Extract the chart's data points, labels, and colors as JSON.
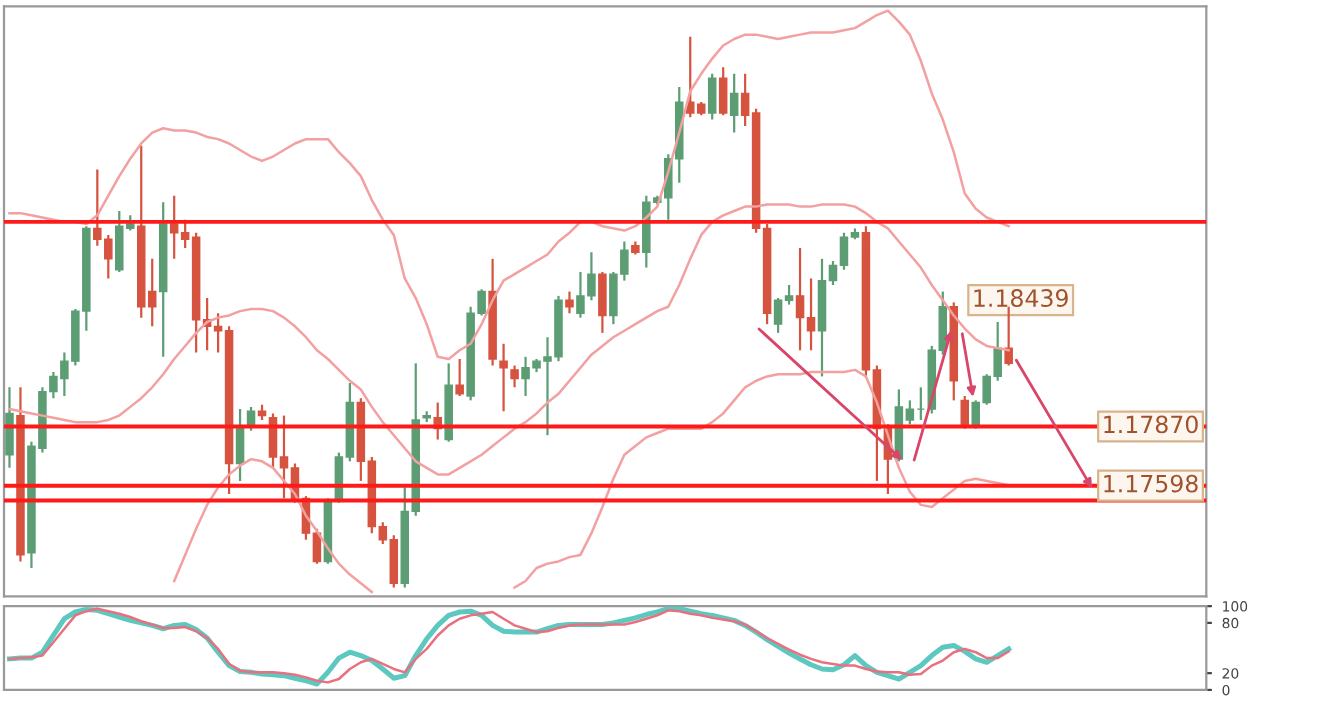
{
  "chart_data": [
    {
      "type": "candlestick",
      "categories": [
        null,
        null,
        null,
        null,
        null,
        null,
        null,
        null,
        null,
        null,
        null,
        null,
        null,
        null,
        null,
        null,
        null,
        null,
        null,
        null,
        null,
        null,
        null,
        null,
        null,
        null,
        null,
        null,
        null,
        null,
        null,
        null,
        null,
        null,
        null,
        null,
        null,
        null,
        null,
        null,
        null,
        null,
        null,
        null,
        null,
        null,
        null,
        null,
        null,
        null,
        null,
        null,
        null,
        null,
        null,
        null,
        null,
        null,
        null,
        null,
        null,
        null,
        null,
        null,
        null,
        null,
        null,
        null,
        null,
        null,
        null,
        null,
        null,
        null,
        null,
        null,
        null,
        null,
        null,
        null,
        null,
        null,
        null,
        null,
        null,
        null,
        null,
        null,
        null,
        null,
        null,
        null
      ],
      "ohlc": [
        [
          1.1774,
          1.1805,
          1.1768,
          1.1793
        ],
        [
          1.1792,
          1.1805,
          1.1725,
          1.1728
        ],
        [
          1.1729,
          1.178,
          1.1722,
          1.1778
        ],
        [
          1.1777,
          1.1805,
          1.1775,
          1.1803
        ],
        [
          1.1803,
          1.1812,
          1.18,
          1.181
        ],
        [
          1.1809,
          1.1821,
          1.1801,
          1.1817
        ],
        [
          1.1817,
          1.1841,
          1.1815,
          1.184
        ],
        [
          1.184,
          1.1879,
          1.1831,
          1.1878
        ],
        [
          1.1878,
          1.1905,
          1.187,
          1.1873
        ],
        [
          1.1873,
          1.1875,
          1.1855,
          1.1864
        ],
        [
          1.1859,
          1.1886,
          1.1858,
          1.1879
        ],
        [
          1.1878,
          1.1884,
          1.1877,
          1.188
        ],
        [
          1.1879,
          1.1916,
          1.1837,
          1.1842
        ],
        [
          1.1849,
          1.1864,
          1.1833,
          1.1842
        ],
        [
          1.1849,
          1.189,
          1.1819,
          1.188
        ],
        [
          1.188,
          1.1893,
          1.1864,
          1.1876
        ],
        [
          1.1876,
          1.1882,
          1.1869,
          1.1873
        ],
        [
          1.1874,
          1.1876,
          1.1821,
          1.1836
        ],
        [
          1.1836,
          1.1846,
          1.1822,
          1.1833
        ],
        [
          1.1833,
          1.1839,
          1.1821,
          1.1831
        ],
        [
          1.1831,
          1.1833,
          1.1756,
          1.177
        ],
        [
          1.177,
          1.1795,
          1.1762,
          1.1786
        ],
        [
          1.1787,
          1.1796,
          1.1785,
          1.1794
        ],
        [
          1.1794,
          1.1797,
          1.179,
          1.1792
        ],
        [
          1.1791,
          1.1793,
          1.1768,
          1.1773
        ],
        [
          1.1773,
          1.1792,
          1.1754,
          1.1768
        ],
        [
          1.1768,
          1.177,
          1.1752,
          1.1753
        ],
        [
          1.1754,
          1.1755,
          1.1735,
          1.1738
        ],
        [
          1.1738,
          1.174,
          1.1724,
          1.1725
        ],
        [
          1.1725,
          1.1754,
          1.1724,
          1.1753
        ],
        [
          1.1753,
          1.1775,
          1.1752,
          1.1773
        ],
        [
          1.1773,
          1.1807,
          1.1771,
          1.1798
        ],
        [
          1.1798,
          1.18,
          1.1762,
          1.1771
        ],
        [
          1.1771,
          1.1773,
          1.1738,
          1.1741
        ],
        [
          1.1741,
          1.1743,
          1.1733,
          1.1735
        ],
        [
          1.1735,
          1.1737,
          1.1713,
          1.1715
        ],
        [
          1.1715,
          1.1759,
          1.1713,
          1.1748
        ],
        [
          1.1748,
          1.1816,
          1.1746,
          1.179
        ],
        [
          1.1791,
          1.1794,
          1.1789,
          1.1792
        ],
        [
          1.1791,
          1.1798,
          1.1781,
          1.1786
        ],
        [
          1.1781,
          1.1816,
          1.178,
          1.1806
        ],
        [
          1.1806,
          1.1818,
          1.1801,
          1.1802
        ],
        [
          1.1801,
          1.1842,
          1.1799,
          1.1839
        ],
        [
          1.1839,
          1.185,
          1.1838,
          1.1849
        ],
        [
          1.1849,
          1.1864,
          1.1815,
          1.1818
        ],
        [
          1.1817,
          1.1825,
          1.1794,
          1.1814
        ],
        [
          1.1813,
          1.1815,
          1.1805,
          1.1809
        ],
        [
          1.1809,
          1.1819,
          1.1801,
          1.1814
        ],
        [
          1.1814,
          1.1818,
          1.1812,
          1.1817
        ],
        [
          1.1817,
          1.1828,
          1.1783,
          1.1819
        ],
        [
          1.1819,
          1.1847,
          1.1817,
          1.1845
        ],
        [
          1.1845,
          1.1849,
          1.1839,
          1.1842
        ],
        [
          1.1839,
          1.1858,
          1.1837,
          1.1847
        ],
        [
          1.1847,
          1.1867,
          1.1845,
          1.1857
        ],
        [
          1.1857,
          1.1858,
          1.183,
          1.1838
        ],
        [
          1.1838,
          1.1858,
          1.1834,
          1.1857
        ],
        [
          1.1857,
          1.1872,
          1.1854,
          1.1868
        ],
        [
          1.187,
          1.1872,
          1.1866,
          1.1867
        ],
        [
          1.1867,
          1.1893,
          1.186,
          1.189
        ],
        [
          1.189,
          1.1893,
          1.1889,
          1.1892
        ],
        [
          1.1892,
          1.1912,
          1.1882,
          1.191
        ],
        [
          1.191,
          1.1943,
          1.1899,
          1.1936
        ],
        [
          1.1936,
          1.1966,
          1.1929,
          1.1931
        ],
        [
          1.1935,
          1.1936,
          1.193,
          1.1931
        ],
        [
          1.1931,
          1.1949,
          1.1928,
          1.1947
        ],
        [
          1.1947,
          1.1952,
          1.193,
          1.1931
        ],
        [
          1.193,
          1.1949,
          1.1922,
          1.194
        ],
        [
          1.194,
          1.1949,
          1.1925,
          1.193
        ],
        [
          1.1931,
          1.1933,
          1.1876,
          1.1878
        ],
        [
          1.1878,
          1.188,
          1.1834,
          1.1839
        ],
        [
          1.1834,
          1.1846,
          1.183,
          1.1845
        ],
        [
          1.1845,
          1.1852,
          1.1843,
          1.1847
        ],
        [
          1.1847,
          1.1869,
          1.1822,
          1.1837
        ],
        [
          1.1837,
          1.1855,
          1.1822,
          1.1831
        ],
        [
          1.1831,
          1.1864,
          1.181,
          1.1854
        ],
        [
          1.1854,
          1.1863,
          1.1852,
          1.1861
        ],
        [
          1.1861,
          1.1876,
          1.1859,
          1.1874
        ],
        [
          1.1874,
          1.1878,
          1.1873,
          1.1876
        ],
        [
          1.1876,
          1.1879,
          1.181,
          1.1813
        ],
        [
          1.1813,
          1.1815,
          1.1762,
          1.1786
        ],
        [
          1.1786,
          1.1788,
          1.1756,
          1.1772
        ],
        [
          1.1772,
          1.1804,
          1.1771,
          1.1796
        ],
        [
          1.179,
          1.1799,
          1.1788,
          1.1795
        ],
        [
          1.1795,
          1.1805,
          1.179,
          1.1795
        ],
        [
          1.1795,
          1.1824,
          1.1793,
          1.1822
        ],
        [
          1.1822,
          1.1849,
          1.182,
          1.1842
        ],
        [
          1.1842,
          1.1844,
          1.1799,
          1.1808
        ],
        [
          1.1799,
          1.1801,
          1.1786,
          1.1787
        ],
        [
          1.1787,
          1.1799,
          1.1786,
          1.1798
        ],
        [
          1.1798,
          1.1811,
          1.1797,
          1.181
        ],
        [
          1.181,
          1.1835,
          1.1808,
          1.1823
        ],
        [
          1.1823,
          1.1842,
          1.1815,
          1.1816
        ]
      ],
      "colors": [
        "#5c9d74",
        "#d6533f",
        "#5c9d74",
        "#5c9d74",
        "#5c9d74",
        "#5c9d74",
        "#5c9d74",
        "#5c9d74",
        "#d6533f",
        "#d6533f",
        "#5c9d74",
        "#5c9d74",
        "#d6533f",
        "#d6533f",
        "#5c9d74",
        "#d6533f",
        "#d6533f",
        "#d6533f",
        "#d6533f",
        "#d6533f",
        "#d6533f",
        "#5c9d74",
        "#5c9d74",
        "#d6533f",
        "#d6533f",
        "#d6533f",
        "#d6533f",
        "#d6533f",
        "#d6533f",
        "#5c9d74",
        "#5c9d74",
        "#5c9d74",
        "#d6533f",
        "#d6533f",
        "#d6533f",
        "#d6533f",
        "#5c9d74",
        "#5c9d74",
        "#5c9d74",
        "#d6533f",
        "#5c9d74",
        "#d6533f",
        "#5c9d74",
        "#5c9d74",
        "#d6533f",
        "#d6533f",
        "#d6533f",
        "#5c9d74",
        "#5c9d74",
        "#5c9d74",
        "#5c9d74",
        "#d6533f",
        "#5c9d74",
        "#5c9d74",
        "#d6533f",
        "#5c9d74",
        "#5c9d74",
        "#d6533f",
        "#5c9d74",
        "#5c9d74",
        "#5c9d74",
        "#5c9d74",
        "#d6533f",
        "#d6533f",
        "#5c9d74",
        "#d6533f",
        "#5c9d74",
        "#d6533f",
        "#d6533f",
        "#d6533f",
        "#5c9d74",
        "#5c9d74",
        "#d6533f",
        "#d6533f",
        "#5c9d74",
        "#5c9d74",
        "#5c9d74",
        "#5c9d74",
        "#d6533f",
        "#d6533f",
        "#d6533f",
        "#5c9d74",
        "#5c9d74",
        "#5c9d74",
        "#5c9d74",
        "#5c9d74",
        "#d6533f",
        "#d6533f",
        "#5c9d74",
        "#5c9d74",
        "#5c9d74",
        "#d6533f"
      ],
      "series": [
        {
          "type": "line",
          "color": "#f2a0a0",
          "values": [
            1.1885,
            1.1885,
            1.1884,
            1.1883,
            1.1882,
            1.1881,
            1.1881,
            1.188,
            1.1884,
            1.1893,
            1.1902,
            1.191,
            1.1917,
            1.1922,
            1.1924,
            1.1923,
            1.1923,
            1.1922,
            1.192,
            1.1919,
            1.1917,
            1.1914,
            1.1911,
            1.1909,
            1.1911,
            1.1914,
            1.1917,
            1.1919,
            1.1919,
            1.1919,
            1.1913,
            1.1908,
            1.1902,
            1.1891,
            1.1882,
            1.1875,
            1.1855,
            1.1846,
            1.1834,
            1.1819,
            1.1818,
            1.1822,
            1.1825,
            1.1834,
            1.1845,
            1.1854,
            1.1857,
            1.186,
            1.1863,
            1.1866,
            1.1872,
            1.1876,
            1.1881,
            1.1881,
            1.1879,
            1.1878,
            1.1877,
            1.1879,
            1.1883,
            1.1888,
            1.1904,
            1.1922,
            1.1941,
            1.1949,
            1.1956,
            1.1962,
            1.1965,
            1.1967,
            1.1967,
            1.1966,
            1.1965,
            1.1966,
            1.1967,
            1.1968,
            1.1968,
            1.1968,
            1.1969,
            1.197,
            1.1973,
            1.1976,
            1.1978,
            1.1973,
            1.1967,
            1.1955,
            1.194,
            1.1928,
            1.1913,
            1.1894,
            1.1887,
            1.1883,
            1.1881,
            1.1879
          ]
        },
        {
          "type": "line",
          "color": "#f2a0a0",
          "values": [
            1.1795,
            1.1794,
            1.1793,
            1.1792,
            1.1791,
            1.179,
            1.1789,
            1.1789,
            1.1789,
            1.179,
            1.1792,
            1.1796,
            1.18,
            1.1805,
            1.1811,
            1.1818,
            1.1824,
            1.183,
            1.1835,
            1.1837,
            1.1838,
            1.184,
            1.1841,
            1.1841,
            1.184,
            1.1837,
            1.1833,
            1.1828,
            1.1822,
            1.1818,
            1.1813,
            1.1808,
            1.1804,
            1.1796,
            1.1789,
            1.1783,
            1.1777,
            1.1771,
            1.1768,
            1.1765,
            1.1765,
            1.1768,
            1.1771,
            1.1774,
            1.1778,
            1.1782,
            1.1786,
            1.1789,
            1.1793,
            1.1798,
            1.1802,
            1.1808,
            1.1814,
            1.182,
            1.1824,
            1.1828,
            1.1831,
            1.1834,
            1.1837,
            1.184,
            1.1842,
            1.1852,
            1.1864,
            1.1875,
            1.1881,
            1.1884,
            1.1886,
            1.1888,
            1.1888,
            1.1889,
            1.1889,
            1.1889,
            1.1888,
            1.1888,
            1.1889,
            1.1889,
            1.1889,
            1.1888,
            1.1885,
            1.1881,
            1.1878,
            1.1872,
            1.1866,
            1.186,
            1.1852,
            1.1845,
            1.1838,
            1.1832,
            1.1827,
            1.1824,
            1.1823,
            1.1822
          ]
        },
        {
          "type": "line",
          "color": "#f2a0a0",
          "values": [
            null,
            null,
            null,
            null,
            null,
            null,
            null,
            null,
            null,
            null,
            null,
            null,
            null,
            null,
            null,
            1.1716,
            1.1728,
            1.174,
            1.1751,
            1.1759,
            1.1765,
            1.1769,
            1.1772,
            1.1771,
            1.1768,
            1.1762,
            1.1756,
            1.1746,
            1.1739,
            1.1731,
            1.1724,
            1.1719,
            1.1715,
            1.1711,
            null,
            null,
            null,
            null,
            null,
            null,
            null,
            null,
            null,
            null,
            null,
            null,
            1.1713,
            1.1716,
            1.1722,
            1.1724,
            1.1725,
            1.1727,
            1.1728,
            1.1738,
            1.175,
            1.1763,
            1.1774,
            1.1778,
            1.1782,
            1.1784,
            1.1786,
            1.1786,
            1.1786,
            1.1786,
            1.1789,
            1.1793,
            1.1799,
            1.1805,
            1.1808,
            1.181,
            1.1811,
            1.1811,
            1.1811,
            1.1812,
            1.1812,
            1.1812,
            1.1812,
            1.1813,
            1.181,
            1.1798,
            1.1783,
            1.1768,
            1.1757,
            1.1751,
            1.175,
            1.1754,
            1.1758,
            1.1762,
            1.1763,
            1.1762,
            1.1761,
            1.176
          ]
        }
      ],
      "ylim": [
        1.1709,
        1.198
      ],
      "tick_labels": false,
      "ref_lines": [
        {
          "axis": "y",
          "value": 1.1881,
          "color": "#ff1a1a"
        },
        {
          "axis": "y",
          "value": 1.1787,
          "label": "1.17870",
          "color": "#ff1a1a"
        },
        {
          "axis": "y",
          "value": 1.17598,
          "label": "1.17598",
          "color": "#ff1a1a"
        },
        {
          "axis": "y",
          "value": 1.1753,
          "color": "#ff1a1a"
        }
      ],
      "annotations": [
        "1.18439"
      ]
    },
    {
      "type": "line",
      "categories": [
        null,
        null,
        null,
        null,
        null,
        null,
        null,
        null,
        null,
        null,
        null,
        null,
        null,
        null,
        null,
        null,
        null,
        null,
        null,
        null,
        null,
        null,
        null,
        null,
        null,
        null,
        null,
        null,
        null,
        null,
        null,
        null,
        null,
        null,
        null,
        null,
        null,
        null,
        null,
        null,
        null,
        null,
        null,
        null,
        null,
        null,
        null,
        null,
        null,
        null,
        null,
        null,
        null,
        null,
        null,
        null,
        null,
        null,
        null,
        null,
        null,
        null,
        null,
        null,
        null,
        null,
        null,
        null,
        null,
        null,
        null,
        null,
        null,
        null,
        null,
        null,
        null,
        null,
        null,
        null,
        null,
        null,
        null,
        null,
        null,
        null,
        null,
        null,
        null,
        null,
        null,
        null
      ],
      "series": [
        {
          "color": "#5cc8bf",
          "values": [
            37,
            38,
            38,
            45,
            65,
            85,
            93,
            96,
            95,
            91,
            87,
            83,
            80,
            77,
            73,
            77,
            78,
            72,
            62,
            45,
            29,
            22,
            21,
            19,
            18,
            17,
            14,
            11,
            7,
            21,
            38,
            45,
            41,
            35,
            25,
            14,
            17,
            41,
            61,
            77,
            89,
            93,
            94,
            89,
            77,
            70,
            69,
            69,
            69,
            73,
            77,
            78,
            78,
            78,
            78,
            80,
            83,
            86,
            90,
            93,
            97,
            97,
            94,
            91,
            89,
            86,
            83,
            77,
            69,
            60,
            52,
            44,
            37,
            30,
            25,
            24,
            30,
            41,
            29,
            21,
            17,
            13,
            21,
            29,
            41,
            51,
            53,
            46,
            37,
            33,
            41,
            49
          ]
        },
        {
          "color": "#e8707f",
          "values": [
            37,
            38,
            39,
            41,
            57,
            73,
            89,
            94,
            97,
            94,
            91,
            87,
            82,
            78,
            74,
            74,
            75,
            70,
            62,
            49,
            31,
            23,
            21,
            21,
            21,
            20,
            18,
            15,
            11,
            9,
            13,
            25,
            33,
            37,
            31,
            25,
            21,
            37,
            49,
            65,
            77,
            85,
            89,
            91,
            93,
            85,
            77,
            73,
            69,
            70,
            74,
            77,
            78,
            78,
            78,
            78,
            78,
            81,
            85,
            89,
            95,
            94,
            91,
            89,
            86,
            84,
            82,
            78,
            70,
            62,
            55,
            48,
            42,
            37,
            33,
            31,
            29,
            29,
            25,
            22,
            21,
            21,
            18,
            19,
            29,
            35,
            45,
            49,
            45,
            38,
            38,
            46
          ]
        }
      ],
      "ylim": [
        0,
        100
      ],
      "yticks": [
        0,
        20,
        80,
        100
      ],
      "tick_labels": "y"
    }
  ]
}
